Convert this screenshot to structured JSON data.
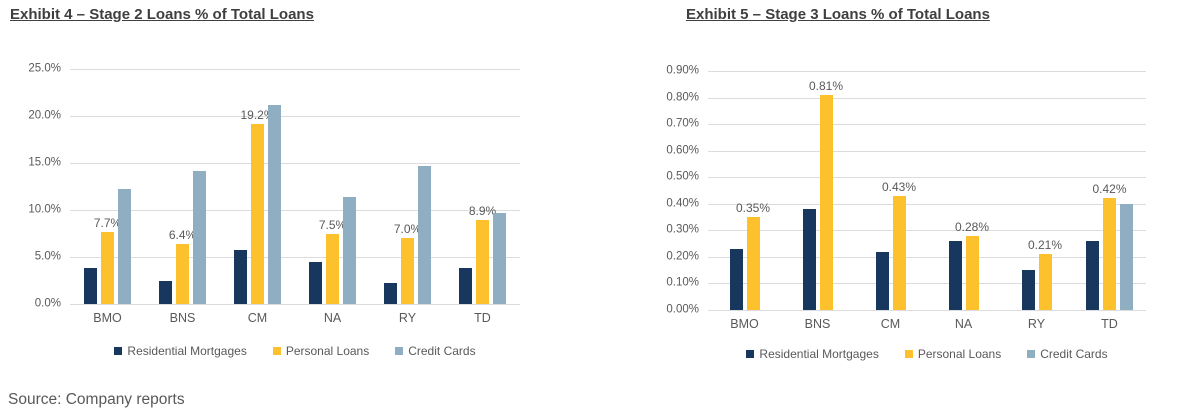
{
  "page": {
    "source_note": "Source: Company reports"
  },
  "colors": {
    "navy": "#17375E",
    "gold": "#FCC12D",
    "slate": "#8FAEC2",
    "grid": "#DCDCDC",
    "axis_text": "#595959",
    "title_text": "#3F3F3F"
  },
  "chart_data": [
    {
      "type": "bar",
      "title": "Exhibit 4 – Stage 2 Loans % of Total Loans",
      "xlabel": "",
      "ylabel": "",
      "unit": "% of total loans",
      "grid": true,
      "legend_position": "bottom",
      "categories": [
        "BMO",
        "BNS",
        "CM",
        "NA",
        "RY",
        "TD"
      ],
      "ylim": [
        0,
        25
      ],
      "ytick_step": 5,
      "ytick_labels": [
        "0.0%",
        "5.0%",
        "10.0%",
        "15.0%",
        "20.0%",
        "25.0%"
      ],
      "series": [
        {
          "name": "Residential Mortgages",
          "color_key": "navy",
          "values": [
            3.8,
            2.5,
            5.7,
            4.5,
            2.2,
            3.8
          ]
        },
        {
          "name": "Personal Loans",
          "color_key": "gold",
          "values": [
            7.7,
            6.4,
            19.2,
            7.5,
            7.0,
            8.9
          ],
          "labels": [
            "7.7%",
            "6.4%",
            "19.2%",
            "7.5%",
            "7.0%",
            "8.9%"
          ]
        },
        {
          "name": "Credit Cards",
          "color_key": "slate",
          "values": [
            12.2,
            14.2,
            21.2,
            11.4,
            14.7,
            9.7
          ]
        }
      ]
    },
    {
      "type": "bar",
      "title": "Exhibit 5 – Stage 3 Loans % of Total Loans",
      "xlabel": "",
      "ylabel": "",
      "unit": "% of total loans",
      "grid": true,
      "legend_position": "bottom",
      "categories": [
        "BMO",
        "BNS",
        "CM",
        "NA",
        "RY",
        "TD"
      ],
      "ylim": [
        0,
        0.9
      ],
      "ytick_step": 0.1,
      "ytick_labels": [
        "0.00%",
        "0.10%",
        "0.20%",
        "0.30%",
        "0.40%",
        "0.50%",
        "0.60%",
        "0.70%",
        "0.80%",
        "0.90%"
      ],
      "series": [
        {
          "name": "Residential Mortgages",
          "color_key": "navy",
          "values": [
            0.23,
            0.38,
            0.22,
            0.26,
            0.15,
            0.26
          ]
        },
        {
          "name": "Personal Loans",
          "color_key": "gold",
          "values": [
            0.35,
            0.81,
            0.43,
            0.28,
            0.21,
            0.42
          ],
          "labels": [
            "0.35%",
            "0.81%",
            "0.43%",
            "0.28%",
            "0.21%",
            "0.42%"
          ]
        },
        {
          "name": "Credit Cards",
          "color_key": "slate",
          "values": [
            null,
            null,
            null,
            null,
            null,
            0.4
          ]
        }
      ]
    }
  ]
}
